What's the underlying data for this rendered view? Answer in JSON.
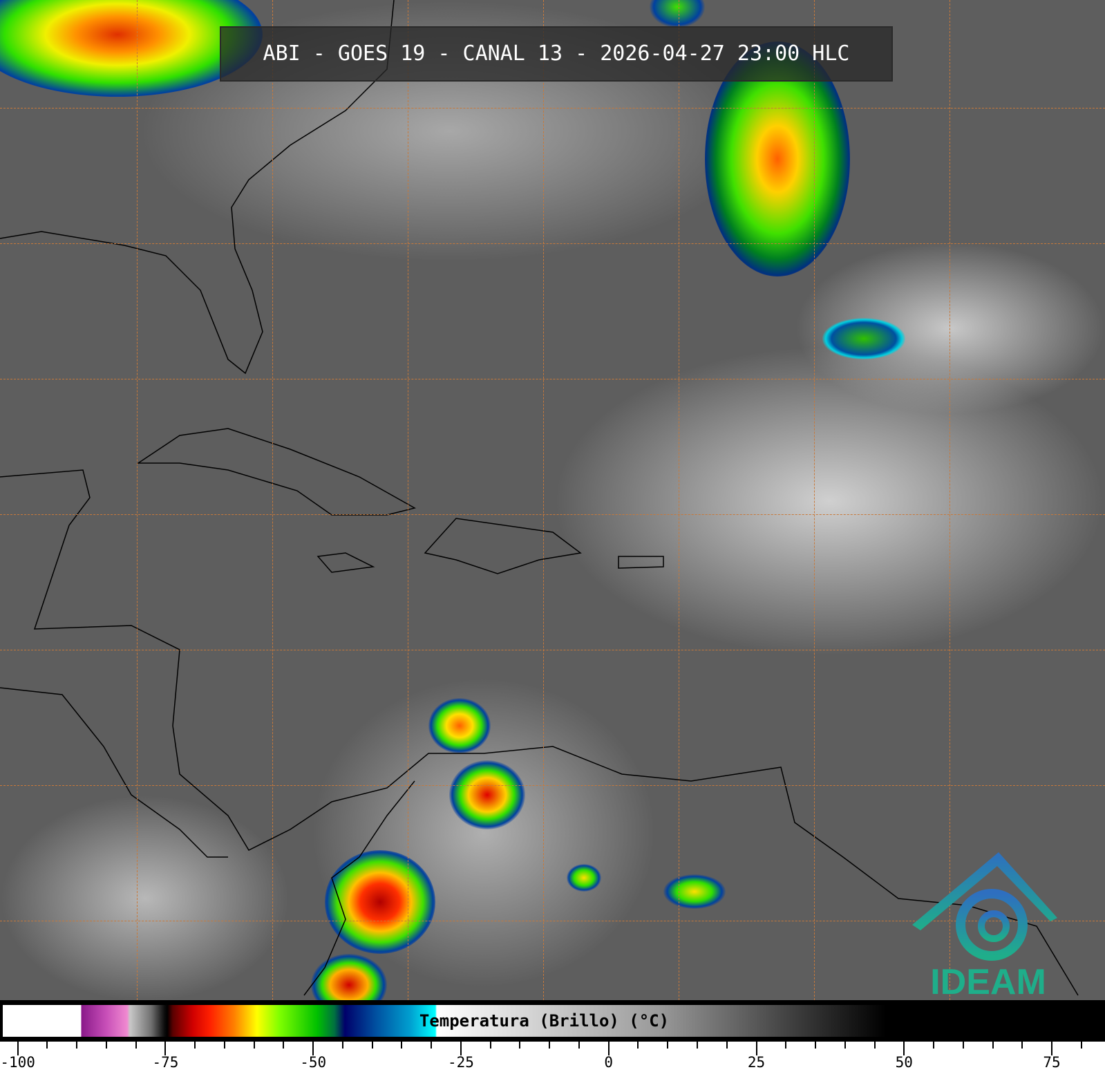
{
  "title": "ABI - GOES 19 - CANAL 13 - 2026-04-27 23:00 HLC",
  "colorbar": {
    "label": "Temperatura (Brillo) (°C)",
    "ticks": [
      "-100",
      "-75",
      "-50",
      "-25",
      "0",
      "25",
      "50",
      "75"
    ],
    "tick_values": [
      -100,
      -75,
      -50,
      -25,
      0,
      25,
      50,
      75
    ],
    "range": [
      -103,
      84
    ]
  },
  "logo": {
    "text": "IDEAM",
    "color_top": "#2e6fc0",
    "color_bottom": "#1fae8a"
  },
  "colors": {
    "grid": "#c8793a",
    "background": "#5e5e5e",
    "coastline": "#000000"
  }
}
